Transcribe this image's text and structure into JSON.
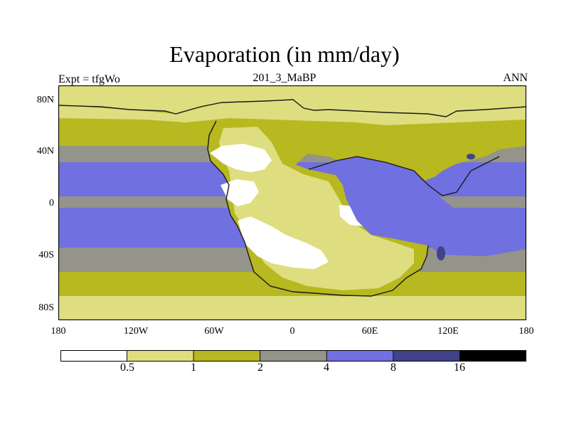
{
  "title": "Evaporation (in mm/day)",
  "left_label": "Expt = tfgWo",
  "center_label": "201_3_MaBP",
  "right_label": "ANN",
  "y_ticks": [
    "80N",
    "40N",
    "0",
    "40S",
    "80S"
  ],
  "x_ticks": [
    "180",
    "120W",
    "60W",
    "0",
    "60E",
    "120E",
    "180"
  ],
  "colorbar": {
    "labels": [
      "0.5",
      "1",
      "2",
      "4",
      "8",
      "16"
    ],
    "colors": [
      "#ffffff",
      "#dede80",
      "#b8b820",
      "#94948a",
      "#7070e0",
      "#42428a",
      "#000000"
    ]
  },
  "map_colors": {
    "pale": "#dede80",
    "olive": "#b8b820",
    "gray": "#94948a",
    "blue": "#7070e0",
    "darkblue": "#42428a",
    "white": "#ffffff",
    "coast": "#1a1a1a"
  }
}
